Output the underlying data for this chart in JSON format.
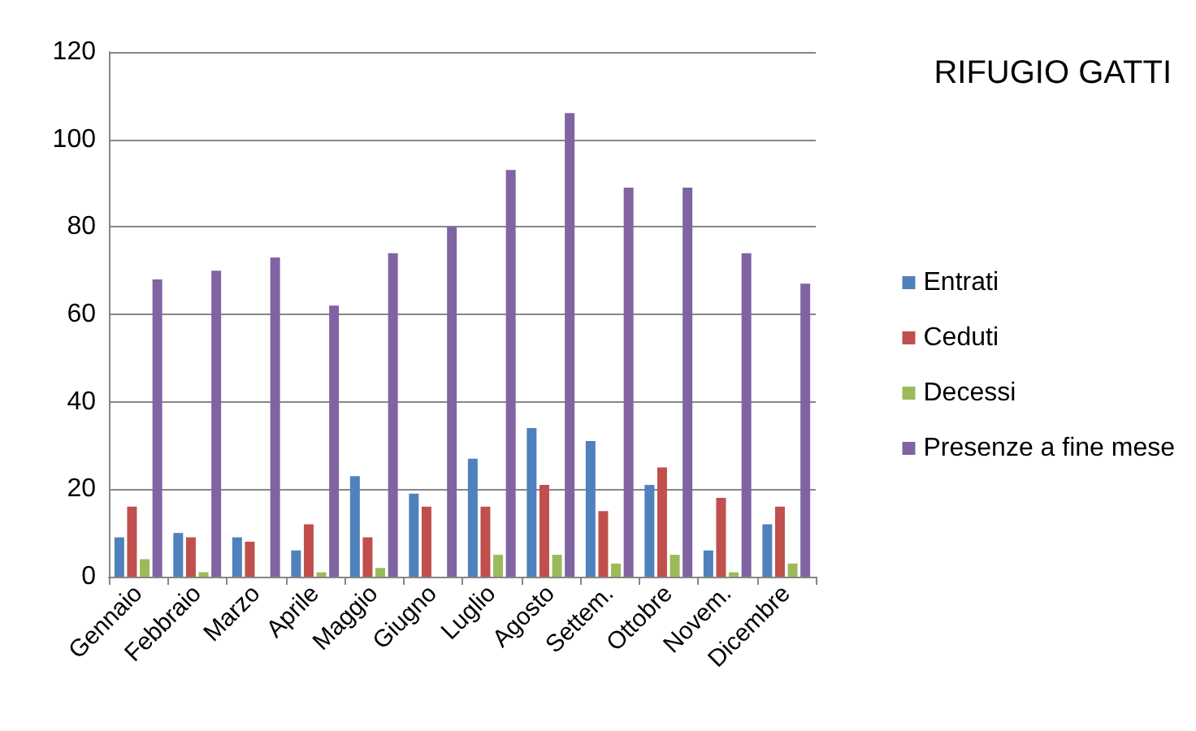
{
  "chart_data": {
    "type": "bar",
    "title": "RIFUGIO GATTI",
    "categories": [
      "Gennaio",
      "Febbraio",
      "Marzo",
      "Aprile",
      "Maggio",
      "Giugno",
      "Luglio",
      "Agosto",
      "Settem.",
      "Ottobre",
      "Novem.",
      "Dicembre"
    ],
    "series": [
      {
        "name": "Entrati",
        "color": "#4f81bd",
        "values": [
          9,
          10,
          9,
          6,
          23,
          19,
          27,
          34,
          31,
          21,
          6,
          12
        ]
      },
      {
        "name": "Ceduti",
        "color": "#c0504d",
        "values": [
          16,
          9,
          8,
          12,
          9,
          16,
          16,
          21,
          15,
          25,
          18,
          16
        ]
      },
      {
        "name": "Decessi",
        "color": "#9bbb59",
        "values": [
          4,
          1,
          0,
          1,
          2,
          0,
          5,
          5,
          3,
          5,
          1,
          3
        ]
      },
      {
        "name": "Presenze a fine mese",
        "color": "#8064a2",
        "values": [
          68,
          70,
          73,
          62,
          74,
          80,
          93,
          106,
          89,
          89,
          74,
          67
        ]
      }
    ],
    "ylim": [
      0,
      120
    ],
    "yticks": [
      0,
      20,
      40,
      60,
      80,
      100,
      120
    ],
    "grid": "y",
    "legend": "right"
  }
}
